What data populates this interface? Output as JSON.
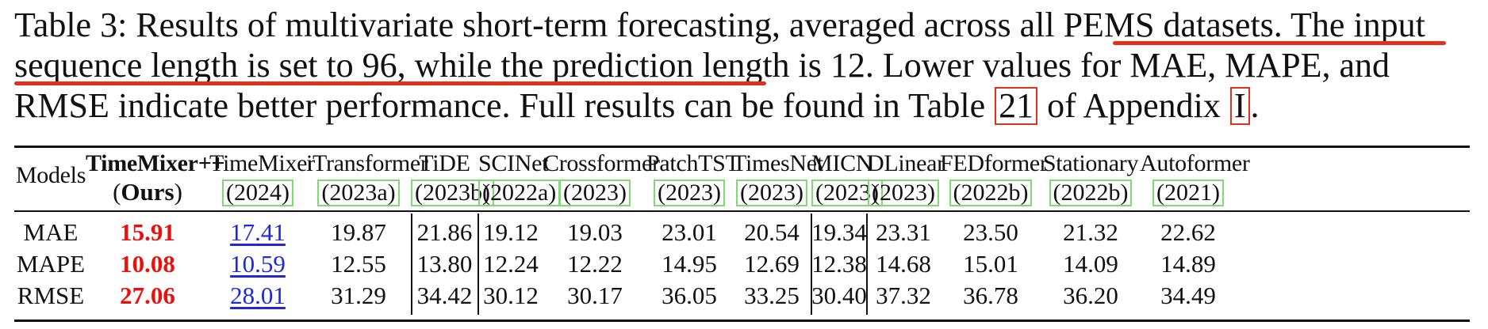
{
  "caption": {
    "line1_a": "Table 3: Results of multivariate short-term forecasting, averaged across all PEMS datasets.",
    "line1_b": "The input",
    "line2_a": "sequence length is set to 96, while the prediction length is 12.",
    "line2_b": "Lower values for MAE, MAPE, and",
    "line3_a": "RMSE indicate better performance. Full results can be found in Table",
    "table_ref": "21",
    "line3_b": "of Appendix",
    "appendix_ref": "I",
    "line3_c": "."
  },
  "table": {
    "models_label": "Models",
    "ours_name": "TimeMixer++",
    "ours_tag_open": "(",
    "ours_tag": "Ours",
    "ours_tag_close": ")",
    "models": [
      {
        "name": "TimeMixer",
        "year": "(2024)"
      },
      {
        "name": "iTransformer",
        "year": "(2023a)"
      },
      {
        "name": "TiDE",
        "year": "(2023b)"
      },
      {
        "name": "SCINet",
        "year": "(2022a)"
      },
      {
        "name": "Crossformer",
        "year": "(2023)"
      },
      {
        "name": "PatchTST",
        "year": "(2023)"
      },
      {
        "name": "TimesNet",
        "year": "(2023)"
      },
      {
        "name": "MICN",
        "year": "(2023)"
      },
      {
        "name": "DLinear",
        "year": "(2023)"
      },
      {
        "name": "FEDformer",
        "year": "(2022b)"
      },
      {
        "name": "Stationary",
        "year": "(2022b)"
      },
      {
        "name": "Autoformer",
        "year": "(2021)"
      }
    ],
    "rows": [
      {
        "metric": "MAE",
        "values": [
          "15.91",
          "17.41",
          "19.87",
          "21.86",
          "19.12",
          "19.03",
          "23.01",
          "20.54",
          "19.34",
          "23.31",
          "23.50",
          "21.32",
          "22.62"
        ]
      },
      {
        "metric": "MAPE",
        "values": [
          "10.08",
          "10.59",
          "12.55",
          "13.80",
          "12.24",
          "12.22",
          "14.95",
          "12.69",
          "12.38",
          "14.68",
          "15.01",
          "14.09",
          "14.89"
        ]
      },
      {
        "metric": "RMSE",
        "values": [
          "27.06",
          "28.01",
          "31.29",
          "34.42",
          "30.12",
          "30.17",
          "36.05",
          "33.25",
          "30.40",
          "37.32",
          "36.78",
          "36.20",
          "34.49"
        ]
      }
    ],
    "colors": {
      "best": "#e8110d",
      "second": "#1f2ad6",
      "annotation": "#e0301e",
      "citation_box": "#7ddc6f"
    }
  }
}
